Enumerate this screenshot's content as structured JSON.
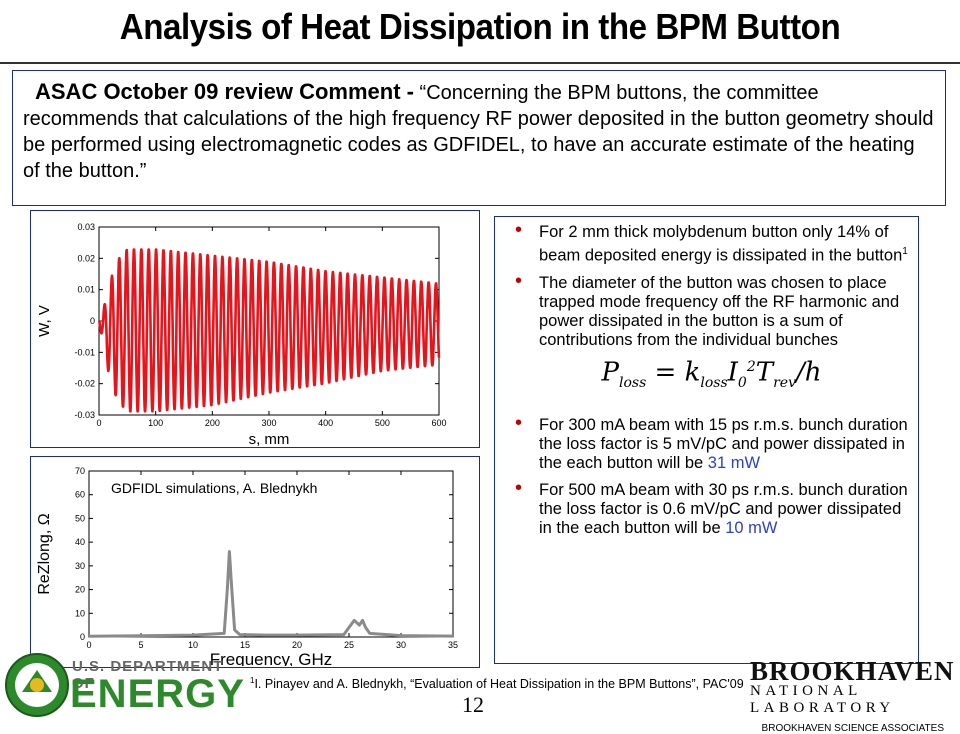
{
  "slide": {
    "title": "Analysis of Heat Dissipation in the BPM Button",
    "page_number": "12"
  },
  "comment": {
    "heading": "ASAC October 09 review Comment -",
    "text": "“Concerning the BPM buttons, the committee recommends that calculations of the high frequency RF power deposited in the button geometry should be performed using electromagnetic codes as GDFIDEL, to have an accurate estimate of the heating of the button.”"
  },
  "bullets": {
    "b1": "For 2 mm thick molybdenum button only 14% of beam deposited energy is dissipated in the button",
    "b1_sup": "1",
    "b2": "The diameter of the button was chosen to place trapped mode frequency off the RF harmonic and power dissipated in the button is a sum of contributions from the individual bunches",
    "b3": "For 300 mA beam with 15 ps r.m.s. bunch duration the loss factor is 5 mV/pC and power dissipated in the each button will be",
    "b3_value": "31 mW",
    "b4": "For 500 mA beam with 30 ps r.m.s. bunch duration the loss factor is 0.6 mV/pC and power dissipated in the each button will be",
    "b4_value": "10 mW"
  },
  "formula": {
    "p": "P",
    "p_sub": "loss",
    "eq": " = ",
    "k": "k",
    "k_sub": "loss",
    "i": "I",
    "i_sub": "0",
    "i_sup": "2",
    "t": "T",
    "t_sub": "rev",
    "tail": "/h"
  },
  "footnote": {
    "sup": "1",
    "text": "I. Pinayev and A. Blednykh, “Evaluation of Heat Dissipation in the BPM Buttons”, PAC'09"
  },
  "logos": {
    "doe_line1": "U.S. DEPARTMENT OF",
    "doe_line2": "ENERGY",
    "bnl_name": "BROOKHAVEN",
    "bnl_lab": "NATIONAL LABORATORY",
    "bnl_assoc": "BROOKHAVEN SCIENCE ASSOCIATES"
  },
  "colors": {
    "wake_line": "#e8141c",
    "impedance_line": "#8a8a8a",
    "frame": "#1c2a8a",
    "highlight": "#2b3fcf",
    "bullet": "#c00000",
    "doe_green": "#2c8a2a"
  },
  "chart_data": [
    {
      "type": "line",
      "xlabel": "s, mm",
      "ylabel": "W, V",
      "xlim": [
        0,
        600
      ],
      "ylim": [
        -0.03,
        0.03
      ],
      "x_ticks": [
        "0",
        "100",
        "200",
        "300",
        "400",
        "500",
        "600"
      ],
      "y_ticks": [
        "-0.03",
        "-0.02",
        "-0.01",
        "0",
        "0.01",
        "0.02",
        "0.03"
      ],
      "grid": false,
      "series": [
        {
          "x": [
            0,
            3,
            8,
            15,
            25,
            35,
            50,
            100,
            150,
            200,
            300,
            400,
            500,
            600
          ],
          "envelope": [
            0.0,
            0.002,
            0.006,
            0.012,
            0.019,
            0.023,
            0.026,
            0.026,
            0.025,
            0.024,
            0.021,
            0.018,
            0.015,
            0.013
          ],
          "oscillation_period_mm": 13,
          "center_offset": [
            0.0,
            -0.001,
            -0.002,
            -0.003,
            -0.003,
            -0.003,
            -0.003,
            -0.003,
            -0.003,
            -0.003,
            -0.002,
            -0.002,
            -0.001,
            -0.001
          ]
        }
      ]
    },
    {
      "type": "line",
      "title": "GDFIDL simulations, A. Blednykh",
      "xlabel": "Frequency, GHz",
      "ylabel": "ReZlong, Ω",
      "xlim": [
        0,
        35
      ],
      "ylim": [
        0,
        70
      ],
      "x_ticks": [
        "0",
        "5",
        "10",
        "15",
        "20",
        "25",
        "30",
        "35"
      ],
      "y_ticks": [
        "0",
        "10",
        "20",
        "30",
        "40",
        "50",
        "60",
        "70"
      ],
      "grid": false,
      "series": [
        {
          "x": [
            0,
            5,
            10,
            13.0,
            13.3,
            13.5,
            13.7,
            14.0,
            14.5,
            17,
            20,
            24.5,
            25.0,
            25.5,
            26.0,
            26.3,
            26.6,
            27.0,
            30,
            35
          ],
          "y": [
            0.3,
            0.5,
            0.8,
            1.5,
            20,
            36,
            22,
            3,
            1,
            0.8,
            0.8,
            1,
            4,
            7,
            5,
            7,
            4,
            1.5,
            0.6,
            0.4
          ]
        }
      ]
    }
  ]
}
